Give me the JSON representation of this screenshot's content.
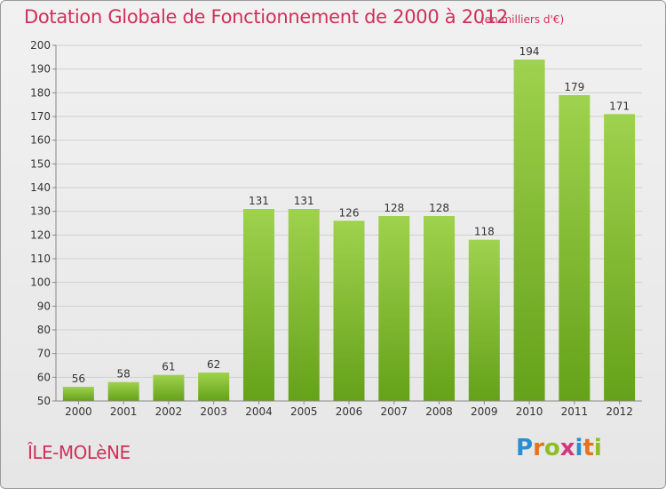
{
  "header": {
    "title": "Dotation Globale de Fonctionnement de 2000 à 2012",
    "subtitle": "(en milliers d'€)"
  },
  "footer": {
    "commune": "ÎLE-MOLèNE",
    "logo": [
      "P",
      "r",
      "o",
      "x",
      "i",
      "t",
      "i"
    ],
    "logo_colors": [
      "#2a8fd0",
      "#e8711d",
      "#8cbf26",
      "#d4377c",
      "#2a8fd0",
      "#e8711d",
      "#8cbf26"
    ]
  },
  "colors": {
    "bar_light": "#9fd24e",
    "bar_dark": "#65a11a",
    "grid": "#d0d0d0",
    "axis": "#888888",
    "accent": "#d0305a"
  },
  "chart_data": {
    "type": "bar",
    "categories": [
      "2000",
      "2001",
      "2002",
      "2003",
      "2004",
      "2005",
      "2006",
      "2007",
      "2008",
      "2009",
      "2010",
      "2011",
      "2012"
    ],
    "values": [
      56,
      58,
      61,
      62,
      131,
      131,
      126,
      128,
      128,
      118,
      194,
      179,
      171
    ],
    "title": "Dotation Globale de Fonctionnement de 2000 à 2012",
    "subtitle": "(en milliers d'€)",
    "xlabel": "",
    "ylabel": "",
    "ylim": [
      50,
      200
    ],
    "yticks": [
      50,
      60,
      70,
      80,
      90,
      100,
      110,
      120,
      130,
      140,
      150,
      160,
      170,
      180,
      190,
      200
    ],
    "grid": true,
    "legend": "none"
  }
}
